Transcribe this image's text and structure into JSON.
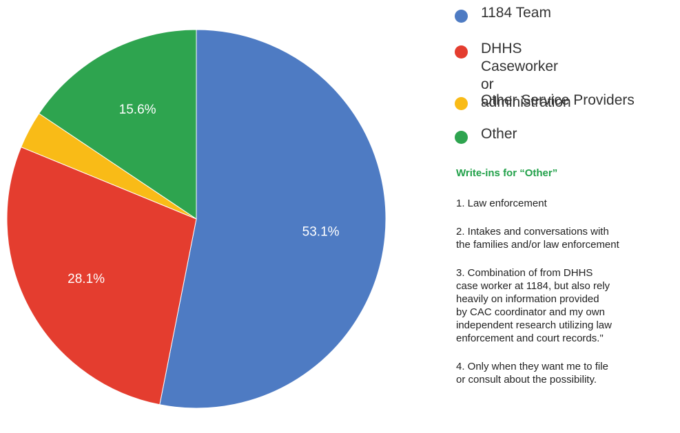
{
  "chart_data": {
    "type": "pie",
    "slices": [
      {
        "label": "1184 Team",
        "value": 53.1,
        "color": "#4e7bc3",
        "data_label": "53.1%"
      },
      {
        "label": "DHHS Caseworker or\nadministration",
        "value": 28.1,
        "color": "#e43d2f",
        "data_label": "28.1%"
      },
      {
        "label": "Other Service Providers",
        "value": 3.2,
        "color": "#f9bb17",
        "data_label": ""
      },
      {
        "label": "Other",
        "value": 15.6,
        "color": "#2ea44f",
        "data_label": "15.6%"
      }
    ]
  },
  "legend": {
    "items": [
      "1184 Team",
      "DHHS Caseworker or\nadministration",
      "Other Service Providers",
      "Other"
    ]
  },
  "writeins": {
    "title": "Write-ins for “Other”",
    "items": [
      "1. Law enforcement",
      "2. Intakes and conversations with\nthe families and/or law enforcement",
      "3. Combination of from DHHS\ncase worker at 1184, but also rely\nheavily on information provided\nby CAC coordinator and my own\nindependent research utilizing law\nenforcement and court records.\"",
      "4. Only when they want me to file\nor consult about the possibility."
    ]
  }
}
